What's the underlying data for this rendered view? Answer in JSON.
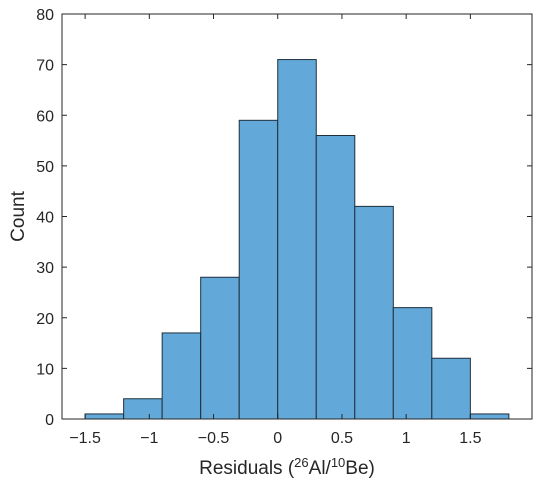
{
  "chart_data": {
    "type": "bar",
    "title": "",
    "xlabel": {
      "prefix": "Residuals (",
      "sup1": "26",
      "mid": "Al/",
      "sup2": "10",
      "suffix": "Be)"
    },
    "ylabel": "Count",
    "bin_edges": [
      -1.5,
      -1.2,
      -0.9,
      -0.6,
      -0.3,
      0.0,
      0.3,
      0.6,
      0.9,
      1.2,
      1.5,
      1.8
    ],
    "values": [
      1,
      4,
      17,
      28,
      59,
      71,
      56,
      42,
      22,
      12,
      1
    ],
    "xlim": [
      -1.68,
      1.98
    ],
    "ylim": [
      0,
      80
    ],
    "xticks": [
      -1.5,
      -1,
      -0.5,
      0,
      0.5,
      1,
      1.5
    ],
    "xtick_labels": [
      "−1.5",
      "−1",
      "−0.5",
      "0",
      "0.5",
      "1",
      "1.5"
    ],
    "yticks": [
      0,
      10,
      20,
      30,
      40,
      50,
      60,
      70,
      80
    ],
    "ytick_labels": [
      "0",
      "10",
      "20",
      "30",
      "40",
      "50",
      "60",
      "70",
      "80"
    ],
    "grid": false,
    "colors": {
      "bar_fill": "#62a8d9",
      "bar_edge": "#1f2f3d",
      "axis": "#262626"
    }
  }
}
